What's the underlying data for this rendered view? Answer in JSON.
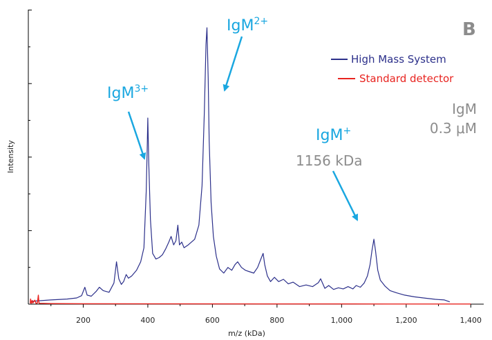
{
  "chart_data": {
    "type": "line",
    "xlabel": "m/z (kDa)",
    "ylabel": "Intensity",
    "xlim": [
      30,
      1440
    ],
    "ylim": [
      0,
      100
    ],
    "xticks": [
      200,
      400,
      600,
      800,
      1000,
      1200,
      1400
    ],
    "xtick_labels": [
      "200",
      "400",
      "600",
      "800",
      "1,000",
      "1,200",
      "1,400"
    ],
    "legend_position": "top-right",
    "panel_label": "B",
    "sample": {
      "name": "IgM",
      "concentration": "0.3 μM"
    },
    "series": [
      {
        "name": "High Mass System",
        "color": "#2b2f8a",
        "points": [
          [
            40,
            1.0
          ],
          [
            100,
            1.5
          ],
          [
            150,
            1.8
          ],
          [
            180,
            2.2
          ],
          [
            195,
            3.0
          ],
          [
            205,
            6.0
          ],
          [
            212,
            3.2
          ],
          [
            225,
            2.8
          ],
          [
            240,
            4.5
          ],
          [
            250,
            6.0
          ],
          [
            262,
            4.8
          ],
          [
            280,
            4.2
          ],
          [
            295,
            7.5
          ],
          [
            303,
            15.0
          ],
          [
            310,
            9.0
          ],
          [
            318,
            7.0
          ],
          [
            325,
            8.0
          ],
          [
            333,
            10.5
          ],
          [
            340,
            9.2
          ],
          [
            350,
            10.0
          ],
          [
            365,
            12.0
          ],
          [
            378,
            15.0
          ],
          [
            388,
            20.0
          ],
          [
            395,
            40.0
          ],
          [
            398,
            55.0
          ],
          [
            400,
            66.0
          ],
          [
            403,
            50.0
          ],
          [
            408,
            30.0
          ],
          [
            415,
            18.0
          ],
          [
            425,
            16.0
          ],
          [
            435,
            16.5
          ],
          [
            445,
            17.5
          ],
          [
            455,
            19.5
          ],
          [
            465,
            22.0
          ],
          [
            472,
            24.0
          ],
          [
            480,
            21.0
          ],
          [
            487,
            22.5
          ],
          [
            493,
            28.0
          ],
          [
            498,
            21.0
          ],
          [
            505,
            22.0
          ],
          [
            512,
            20.0
          ],
          [
            525,
            21.0
          ],
          [
            545,
            23.0
          ],
          [
            558,
            28.0
          ],
          [
            568,
            42.0
          ],
          [
            575,
            68.0
          ],
          [
            580,
            92.0
          ],
          [
            583,
            98.0
          ],
          [
            587,
            80.0
          ],
          [
            590,
            58.0
          ],
          [
            596,
            36.0
          ],
          [
            603,
            24.0
          ],
          [
            612,
            17.0
          ],
          [
            622,
            12.5
          ],
          [
            635,
            11.0
          ],
          [
            648,
            13.0
          ],
          [
            660,
            12.0
          ],
          [
            670,
            14.0
          ],
          [
            678,
            15.0
          ],
          [
            690,
            13.0
          ],
          [
            702,
            12.0
          ],
          [
            715,
            11.5
          ],
          [
            728,
            11.0
          ],
          [
            740,
            13.0
          ],
          [
            750,
            16.0
          ],
          [
            757,
            18.0
          ],
          [
            762,
            14.0
          ],
          [
            770,
            10.0
          ],
          [
            780,
            8.0
          ],
          [
            792,
            9.5
          ],
          [
            805,
            8.0
          ],
          [
            820,
            8.8
          ],
          [
            835,
            7.2
          ],
          [
            850,
            7.8
          ],
          [
            870,
            6.2
          ],
          [
            890,
            6.8
          ],
          [
            910,
            6.2
          ],
          [
            928,
            7.6
          ],
          [
            935,
            9.0
          ],
          [
            948,
            5.6
          ],
          [
            960,
            6.6
          ],
          [
            975,
            5.2
          ],
          [
            990,
            5.8
          ],
          [
            1005,
            5.4
          ],
          [
            1020,
            6.2
          ],
          [
            1035,
            5.4
          ],
          [
            1045,
            6.6
          ],
          [
            1058,
            6.0
          ],
          [
            1070,
            7.5
          ],
          [
            1080,
            10.0
          ],
          [
            1088,
            14.0
          ],
          [
            1094,
            19.0
          ],
          [
            1100,
            23.0
          ],
          [
            1105,
            19.0
          ],
          [
            1112,
            12.0
          ],
          [
            1120,
            8.5
          ],
          [
            1135,
            6.3
          ],
          [
            1150,
            4.8
          ],
          [
            1170,
            4.0
          ],
          [
            1195,
            3.2
          ],
          [
            1225,
            2.6
          ],
          [
            1260,
            2.1
          ],
          [
            1290,
            1.7
          ],
          [
            1318,
            1.5
          ],
          [
            1335,
            0.8
          ]
        ]
      },
      {
        "name": "Standard detector",
        "color": "#e8231f",
        "points": [
          [
            36,
            0.3
          ],
          [
            37,
            1.8
          ],
          [
            39,
            0.3
          ],
          [
            42,
            1.3
          ],
          [
            44,
            0.4
          ],
          [
            50,
            1.4
          ],
          [
            54,
            0.3
          ],
          [
            58,
            0.4
          ],
          [
            61,
            3.2
          ],
          [
            63,
            0.4
          ],
          [
            66,
            0.3
          ],
          [
            100,
            0.2
          ],
          [
            200,
            0.15
          ],
          [
            500,
            0.1
          ],
          [
            1000,
            0.08
          ],
          [
            1145,
            0.05
          ],
          [
            1400,
            0.05
          ]
        ]
      }
    ],
    "annotations": [
      {
        "base": "IgM",
        "sup": "3+"
      },
      {
        "base": "IgM",
        "sup": "2+"
      },
      {
        "base": "IgM",
        "sup": "+",
        "subtitle": "1156 kDa"
      }
    ]
  }
}
